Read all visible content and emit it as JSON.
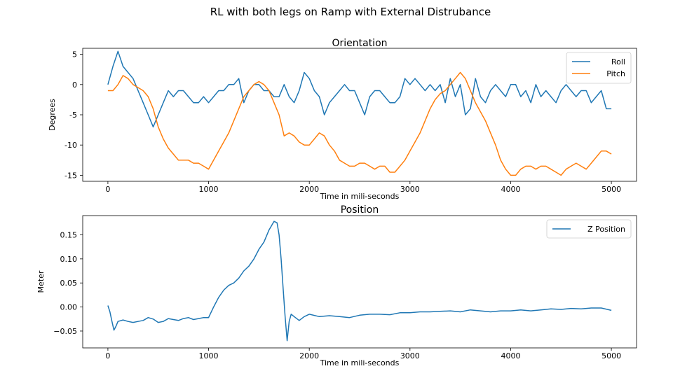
{
  "figure": {
    "suptitle": "RL with both legs on Ramp with External Distrubance"
  },
  "chart_data": [
    {
      "type": "line",
      "title": "Orientation",
      "xlabel": "Time in mili-seconds",
      "ylabel": "Degrees",
      "xlim": [
        -250,
        5250
      ],
      "ylim": [
        -16,
        6
      ],
      "xticks": [
        0,
        1000,
        2000,
        3000,
        4000,
        5000
      ],
      "yticks": [
        5,
        0,
        -5,
        -10,
        -15
      ],
      "legend_position": "top-right",
      "grid": false,
      "series": [
        {
          "name": "Roll",
          "color": "#1f77b4",
          "x": [
            0,
            50,
            100,
            150,
            200,
            250,
            300,
            350,
            400,
            450,
            500,
            550,
            600,
            650,
            700,
            750,
            800,
            850,
            900,
            950,
            1000,
            1050,
            1100,
            1150,
            1200,
            1250,
            1300,
            1350,
            1400,
            1450,
            1500,
            1550,
            1600,
            1650,
            1700,
            1750,
            1800,
            1850,
            1900,
            1950,
            2000,
            2050,
            2100,
            2150,
            2200,
            2250,
            2300,
            2350,
            2400,
            2450,
            2500,
            2550,
            2600,
            2650,
            2700,
            2750,
            2800,
            2850,
            2900,
            2950,
            3000,
            3050,
            3100,
            3150,
            3200,
            3250,
            3300,
            3350,
            3400,
            3450,
            3500,
            3550,
            3600,
            3650,
            3700,
            3750,
            3800,
            3850,
            3900,
            3950,
            4000,
            4050,
            4100,
            4150,
            4200,
            4250,
            4300,
            4350,
            4400,
            4450,
            4500,
            4550,
            4600,
            4650,
            4700,
            4750,
            4800,
            4850,
            4900,
            4950,
            5000
          ],
          "values": [
            0,
            3,
            5.5,
            3,
            2,
            1,
            -1,
            -3,
            -5,
            -7,
            -5,
            -3,
            -1,
            -2,
            -1,
            -1,
            -2,
            -3,
            -3,
            -2,
            -3,
            -2,
            -1,
            -1,
            0,
            0,
            1,
            -3,
            -1,
            0,
            0,
            -1,
            -1,
            -2,
            -2,
            0,
            -2,
            -3,
            -1,
            2,
            1,
            -1,
            -2,
            -5,
            -3,
            -2,
            -1,
            0,
            -1,
            -1,
            -3,
            -5,
            -2,
            -1,
            -1,
            -2,
            -3,
            -3,
            -2,
            1,
            0,
            1,
            0,
            -1,
            0,
            -1,
            0,
            -3,
            1,
            -2,
            0,
            -5,
            -4,
            1,
            -2,
            -3,
            -1,
            0,
            -1,
            -2,
            0,
            0,
            -2,
            -1,
            -3,
            0,
            -2,
            -1,
            -2,
            -3,
            -1,
            0,
            -1,
            -2,
            -1,
            -1,
            -3,
            -2,
            -1,
            -4,
            -4
          ]
        },
        {
          "name": "Pitch",
          "color": "#ff7f0e",
          "x": [
            0,
            50,
            100,
            150,
            200,
            250,
            300,
            350,
            400,
            450,
            500,
            550,
            600,
            650,
            700,
            750,
            800,
            850,
            900,
            950,
            1000,
            1050,
            1100,
            1150,
            1200,
            1250,
            1300,
            1350,
            1400,
            1450,
            1500,
            1550,
            1600,
            1650,
            1700,
            1750,
            1800,
            1850,
            1900,
            1950,
            2000,
            2050,
            2100,
            2150,
            2200,
            2250,
            2300,
            2350,
            2400,
            2450,
            2500,
            2550,
            2600,
            2650,
            2700,
            2750,
            2800,
            2850,
            2900,
            2950,
            3000,
            3050,
            3100,
            3150,
            3200,
            3250,
            3300,
            3350,
            3400,
            3450,
            3500,
            3550,
            3600,
            3650,
            3700,
            3750,
            3800,
            3850,
            3900,
            3950,
            4000,
            4050,
            4100,
            4150,
            4200,
            4250,
            4300,
            4350,
            4400,
            4450,
            4500,
            4550,
            4600,
            4650,
            4700,
            4750,
            4800,
            4850,
            4900,
            4950,
            5000
          ],
          "values": [
            -1,
            -1,
            0,
            1.5,
            1,
            0,
            -0.5,
            -1,
            -2,
            -4,
            -7,
            -9,
            -10.5,
            -11.5,
            -12.5,
            -12.5,
            -12.5,
            -13,
            -13,
            -13.5,
            -14,
            -12.5,
            -11,
            -9.5,
            -8,
            -6,
            -4,
            -2,
            -1,
            0,
            0.5,
            0,
            -1,
            -3,
            -5,
            -8.5,
            -8,
            -8.5,
            -9.5,
            -10,
            -10,
            -9,
            -8,
            -8.5,
            -10,
            -11,
            -12.5,
            -13,
            -13.5,
            -13.5,
            -13,
            -13,
            -13.5,
            -14,
            -13.5,
            -13.5,
            -14.5,
            -14.5,
            -13.5,
            -12.5,
            -11,
            -9.5,
            -8,
            -6,
            -4,
            -2.5,
            -1.5,
            -1,
            0,
            1,
            2,
            1,
            -1,
            -3,
            -4.5,
            -6,
            -8,
            -10,
            -12.5,
            -14,
            -15,
            -15,
            -14,
            -13.5,
            -13.5,
            -14,
            -13.5,
            -13.5,
            -14,
            -14.5,
            -15,
            -14,
            -13.5,
            -13,
            -13.5,
            -14,
            -13,
            -12,
            -11,
            -11,
            -11.5
          ]
        }
      ]
    },
    {
      "type": "line",
      "title": "Position",
      "xlabel": "Time in mili-seconds",
      "ylabel": "Meter",
      "xlim": [
        -250,
        5250
      ],
      "ylim": [
        -0.085,
        0.19
      ],
      "xticks": [
        0,
        1000,
        2000,
        3000,
        4000,
        5000
      ],
      "yticks": [
        0.15,
        0.1,
        0.05,
        0.0,
        -0.05
      ],
      "ytick_labels": [
        "0.15",
        "0.10",
        "0.05",
        "0.00",
        "−0.05"
      ],
      "legend_position": "top-right",
      "grid": false,
      "series": [
        {
          "name": "Z Position",
          "color": "#1f77b4",
          "x": [
            0,
            20,
            40,
            60,
            80,
            100,
            150,
            200,
            250,
            300,
            350,
            400,
            450,
            500,
            550,
            600,
            650,
            700,
            750,
            800,
            850,
            900,
            950,
            1000,
            1050,
            1100,
            1150,
            1200,
            1250,
            1300,
            1350,
            1400,
            1450,
            1500,
            1550,
            1600,
            1650,
            1680,
            1700,
            1720,
            1740,
            1760,
            1780,
            1800,
            1820,
            1850,
            1900,
            1950,
            2000,
            2100,
            2200,
            2300,
            2400,
            2500,
            2600,
            2700,
            2800,
            2900,
            3000,
            3100,
            3200,
            3300,
            3400,
            3500,
            3600,
            3700,
            3800,
            3900,
            4000,
            4100,
            4200,
            4300,
            4400,
            4500,
            4600,
            4700,
            4800,
            4900,
            5000
          ],
          "values": [
            0.003,
            -0.01,
            -0.03,
            -0.048,
            -0.04,
            -0.03,
            -0.027,
            -0.03,
            -0.032,
            -0.03,
            -0.028,
            -0.022,
            -0.025,
            -0.032,
            -0.03,
            -0.024,
            -0.026,
            -0.028,
            -0.024,
            -0.022,
            -0.026,
            -0.024,
            -0.022,
            -0.022,
            0.0,
            0.02,
            0.035,
            0.045,
            0.05,
            0.06,
            0.075,
            0.085,
            0.1,
            0.12,
            0.135,
            0.16,
            0.178,
            0.175,
            0.15,
            0.1,
            0.04,
            -0.02,
            -0.07,
            -0.03,
            -0.015,
            -0.02,
            -0.028,
            -0.02,
            -0.015,
            -0.02,
            -0.018,
            -0.02,
            -0.022,
            -0.017,
            -0.015,
            -0.015,
            -0.016,
            -0.012,
            -0.012,
            -0.01,
            -0.01,
            -0.009,
            -0.008,
            -0.01,
            -0.006,
            -0.008,
            -0.01,
            -0.008,
            -0.008,
            -0.006,
            -0.008,
            -0.006,
            -0.004,
            -0.005,
            -0.003,
            -0.004,
            -0.002,
            -0.002,
            -0.007
          ]
        }
      ]
    }
  ]
}
